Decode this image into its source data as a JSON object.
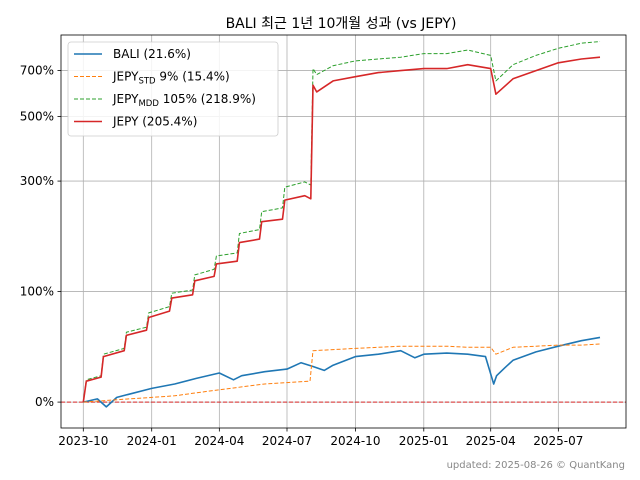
{
  "chart_data": {
    "type": "line",
    "title": "BALI 최근 1년 10개월 성과 (vs JEPY)",
    "footnote": "updated: 2025-08-26 © QuantKang",
    "xlabel": "",
    "ylabel": "",
    "x_ticks": [
      "2023-10",
      "2024-01",
      "2024-04",
      "2024-07",
      "2024-10",
      "2025-01",
      "2025-04",
      "2025-07"
    ],
    "y_ticks": [
      "0%",
      "100%",
      "300%",
      "500%",
      "700%"
    ],
    "y_scale": "log1p",
    "xlim": [
      "2023-09-01",
      "2025-09-30"
    ],
    "ylim": [
      -0.15,
      9.0
    ],
    "grid": true,
    "legend_position": "top-left",
    "series": [
      {
        "name": "BALI (21.6%)",
        "label_parts": {
          "base": "BALI",
          "sub": "",
          "rest": " (21.6%)"
        },
        "color": "#1f77b4",
        "style": "solid",
        "x": [
          "2023-10-01",
          "2023-10-20",
          "2023-11-01",
          "2023-11-15",
          "2023-12-01",
          "2024-01-01",
          "2024-02-01",
          "2024-03-01",
          "2024-04-01",
          "2024-04-20",
          "2024-05-01",
          "2024-06-01",
          "2024-07-01",
          "2024-07-20",
          "2024-08-05",
          "2024-08-20",
          "2024-09-01",
          "2024-10-01",
          "2024-11-01",
          "2024-12-01",
          "2024-12-20",
          "2025-01-01",
          "2025-02-01",
          "2025-03-01",
          "2025-03-25",
          "2025-04-05",
          "2025-04-09",
          "2025-04-20",
          "2025-05-01",
          "2025-06-01",
          "2025-07-01",
          "2025-08-01",
          "2025-08-26"
        ],
        "y": [
          0.0,
          0.02,
          -0.03,
          0.03,
          0.05,
          0.09,
          0.12,
          0.16,
          0.2,
          0.15,
          0.18,
          0.21,
          0.23,
          0.28,
          0.25,
          0.22,
          0.26,
          0.33,
          0.35,
          0.38,
          0.32,
          0.35,
          0.36,
          0.35,
          0.33,
          0.12,
          0.18,
          0.24,
          0.3,
          0.37,
          0.42,
          0.47,
          0.5
        ]
      },
      {
        "name": "JEPYSTD 9% (15.4%)",
        "label_parts": {
          "base": "JEPY",
          "sub": "STD",
          "rest": " 9% (15.4%)"
        },
        "color": "#ff7f0e",
        "style": "dashed",
        "x": [
          "2023-10-01",
          "2023-11-01",
          "2023-12-01",
          "2024-01-01",
          "2024-02-01",
          "2024-03-01",
          "2024-04-01",
          "2024-05-01",
          "2024-06-01",
          "2024-07-01",
          "2024-08-01",
          "2024-08-05",
          "2024-09-01",
          "2024-10-01",
          "2024-11-01",
          "2024-12-01",
          "2025-01-01",
          "2025-02-01",
          "2025-03-01",
          "2025-04-01",
          "2025-04-08",
          "2025-05-01",
          "2025-06-01",
          "2025-07-01",
          "2025-08-01",
          "2025-08-26"
        ],
        "y": [
          0.0,
          0.01,
          0.02,
          0.03,
          0.04,
          0.06,
          0.08,
          0.1,
          0.12,
          0.13,
          0.14,
          0.38,
          0.39,
          0.4,
          0.41,
          0.42,
          0.42,
          0.42,
          0.41,
          0.41,
          0.35,
          0.41,
          0.42,
          0.43,
          0.43,
          0.44
        ]
      },
      {
        "name": "JEPYMDD 105% (218.9%)",
        "label_parts": {
          "base": "JEPY",
          "sub": "MDD",
          "rest": " 105% (218.9%)"
        },
        "color": "#2ca02c",
        "style": "dashed",
        "x": [
          "2023-10-01",
          "2023-10-05",
          "2023-10-25",
          "2023-10-28",
          "2023-11-25",
          "2023-11-28",
          "2023-12-25",
          "2023-12-28",
          "2024-01-25",
          "2024-01-28",
          "2024-02-25",
          "2024-02-28",
          "2024-03-25",
          "2024-03-28",
          "2024-04-25",
          "2024-04-28",
          "2024-05-25",
          "2024-05-28",
          "2024-06-25",
          "2024-06-28",
          "2024-07-25",
          "2024-08-02",
          "2024-08-05",
          "2024-08-10",
          "2024-09-01",
          "2024-10-01",
          "2024-11-01",
          "2024-12-01",
          "2025-01-01",
          "2025-02-01",
          "2025-03-01",
          "2025-04-01",
          "2025-04-08",
          "2025-05-01",
          "2025-06-01",
          "2025-07-01",
          "2025-08-01",
          "2025-08-26"
        ],
        "y": [
          0.0,
          0.15,
          0.18,
          0.35,
          0.4,
          0.55,
          0.6,
          0.75,
          0.82,
          0.98,
          1.02,
          1.22,
          1.3,
          1.5,
          1.55,
          1.88,
          1.95,
          2.3,
          2.38,
          2.85,
          2.98,
          2.9,
          7.1,
          6.8,
          7.25,
          7.5,
          7.6,
          7.7,
          7.9,
          7.9,
          8.1,
          7.8,
          6.5,
          7.3,
          7.8,
          8.2,
          8.5,
          8.6
        ]
      },
      {
        "name": "JEPY (205.4%)",
        "label_parts": {
          "base": "JEPY",
          "sub": "",
          "rest": " (205.4%)"
        },
        "color": "#d62728",
        "style": "solid",
        "x": [
          "2023-10-01",
          "2023-10-05",
          "2023-10-25",
          "2023-10-28",
          "2023-11-25",
          "2023-11-28",
          "2023-12-25",
          "2023-12-28",
          "2024-01-25",
          "2024-01-28",
          "2024-02-25",
          "2024-02-28",
          "2024-03-25",
          "2024-03-28",
          "2024-04-25",
          "2024-04-28",
          "2024-05-25",
          "2024-05-28",
          "2024-06-25",
          "2024-06-28",
          "2024-07-25",
          "2024-08-02",
          "2024-08-05",
          "2024-08-10",
          "2024-09-01",
          "2024-10-01",
          "2024-11-01",
          "2024-12-01",
          "2025-01-01",
          "2025-02-01",
          "2025-03-01",
          "2025-04-01",
          "2025-04-08",
          "2025-05-01",
          "2025-06-01",
          "2025-07-01",
          "2025-08-01",
          "2025-08-26"
        ],
        "y": [
          0.0,
          0.14,
          0.17,
          0.33,
          0.38,
          0.52,
          0.57,
          0.7,
          0.77,
          0.92,
          0.96,
          1.14,
          1.2,
          1.38,
          1.42,
          1.72,
          1.78,
          2.1,
          2.15,
          2.55,
          2.65,
          2.58,
          6.3,
          6.0,
          6.5,
          6.7,
          6.9,
          7.0,
          7.1,
          7.1,
          7.3,
          7.1,
          5.9,
          6.6,
          7.0,
          7.4,
          7.6,
          7.7
        ]
      }
    ]
  }
}
